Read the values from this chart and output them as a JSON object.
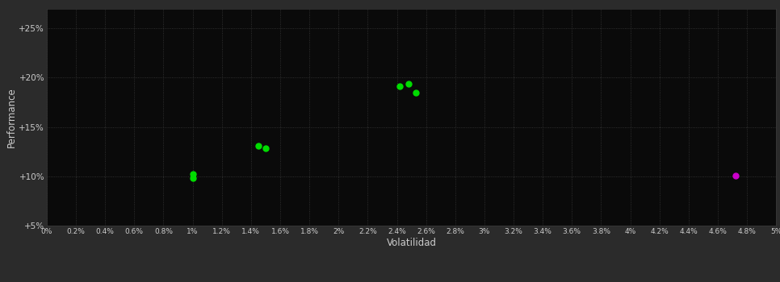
{
  "background_color": "#2b2b2b",
  "plot_bg_color": "#0a0a0a",
  "grid_color": "#3a3a3a",
  "grid_style": ":",
  "xlabel": "Volatilidad",
  "ylabel": "Performance",
  "xlabel_color": "#cccccc",
  "ylabel_color": "#cccccc",
  "tick_color": "#cccccc",
  "xlim": [
    0,
    0.05
  ],
  "ylim": [
    0.05,
    0.27
  ],
  "yticks": [
    0.05,
    0.1,
    0.15,
    0.2,
    0.25
  ],
  "ytick_labels": [
    "+5%",
    "+10%",
    "+15%",
    "+20%",
    "+25%"
  ],
  "xticks": [
    0.0,
    0.002,
    0.004,
    0.006,
    0.008,
    0.01,
    0.012,
    0.014,
    0.016,
    0.018,
    0.02,
    0.022,
    0.024,
    0.026,
    0.028,
    0.03,
    0.032,
    0.034,
    0.036,
    0.038,
    0.04,
    0.042,
    0.044,
    0.046,
    0.048,
    0.05
  ],
  "xtick_labels": [
    "0%",
    "0.2%",
    "0.4%",
    "0.6%",
    "0.8%",
    "1%",
    "1.2%",
    "1.4%",
    "1.6%",
    "1.8%",
    "2%",
    "2.2%",
    "2.4%",
    "2.6%",
    "2.8%",
    "3%",
    "3.2%",
    "3.4%",
    "3.6%",
    "3.8%",
    "4%",
    "4.2%",
    "4.4%",
    "4.6%",
    "4.8%",
    "5%"
  ],
  "green_points": [
    [
      0.01,
      0.1025
    ],
    [
      0.01,
      0.098
    ],
    [
      0.0145,
      0.131
    ],
    [
      0.015,
      0.128
    ],
    [
      0.0242,
      0.191
    ],
    [
      0.0248,
      0.194
    ],
    [
      0.0253,
      0.185
    ]
  ],
  "magenta_points": [
    [
      0.0472,
      0.1005
    ]
  ],
  "point_color_green": "#00dd00",
  "point_color_magenta": "#cc00cc",
  "point_size": 25
}
